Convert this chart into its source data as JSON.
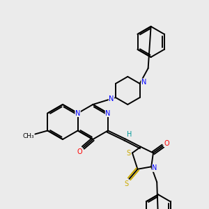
{
  "background_color": "#ebebeb",
  "atom_colors": {
    "N": "#0000ff",
    "O": "#ff0000",
    "S": "#ccaa00",
    "H": "#009999",
    "C": "#000000"
  },
  "figsize": [
    3.0,
    3.0
  ],
  "dpi": 100
}
